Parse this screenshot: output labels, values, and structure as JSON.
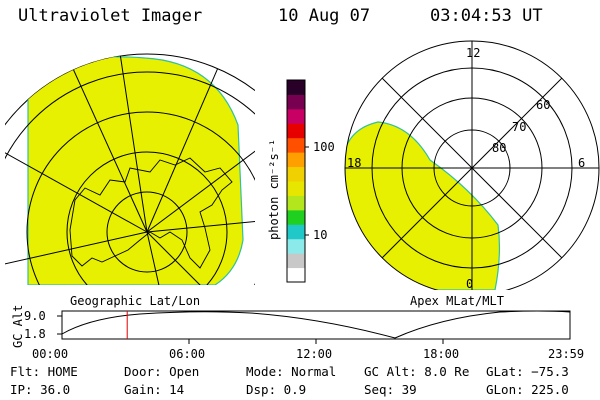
{
  "header": {
    "instrument": "Ultraviolet Imager",
    "date": "10 Aug 07",
    "time": "03:04:53 UT"
  },
  "colorbar": {
    "unit_label": "photon cm⁻²s⁻¹",
    "ticks": [
      "100",
      "10"
    ],
    "colors": [
      "#ffffff",
      "#c8c8c8",
      "#8ceaea",
      "#20c8c8",
      "#20d020",
      "#b4e61e",
      "#e6e600",
      "#f0d000",
      "#ffa000",
      "#ff5000",
      "#e60000",
      "#c80064",
      "#780050",
      "#280028"
    ]
  },
  "panels": {
    "left_label": "Geographic Lat/Lon",
    "right_label": "Apex MLat/MLT",
    "fill_color": "#e6f000",
    "mlt_labels": [
      "12",
      "18",
      "6",
      "0"
    ],
    "mlat_labels": [
      "60",
      "70",
      "80"
    ]
  },
  "timeline": {
    "ylabel": "GC Alt",
    "y_ticks": [
      "9.0",
      "1.8"
    ],
    "x_ticks": [
      "00:00",
      "06:00",
      "12:00",
      "18:00",
      "23:59"
    ],
    "current_marker_time": "03:04:53",
    "marker_color": "#e00000"
  },
  "info": {
    "flt": "Flt: HOME",
    "ip": "IP: 36.0",
    "door": "Door: Open",
    "gain": "Gain: 14",
    "mode": "Mode: Normal",
    "dsp": "Dsp:   0.9",
    "gcalt": "GC Alt: 8.0 Re",
    "seq": "Seq: 39",
    "glat": "GLat: −75.3",
    "glon": "GLon: 225.0"
  }
}
